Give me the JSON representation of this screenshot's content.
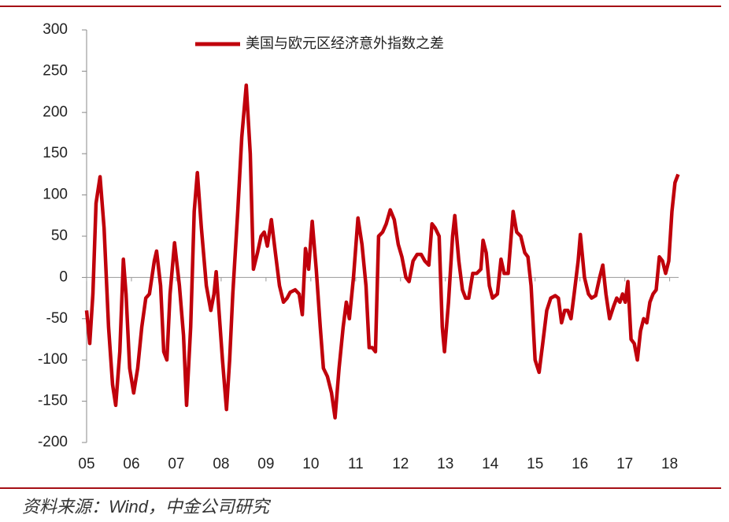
{
  "chart_data": {
    "type": "line",
    "source": "资料来源：Wind，中金公司研究",
    "xlim": [
      2005,
      2018.2
    ],
    "xticks": [
      {
        "value": 2005,
        "label": "05"
      },
      {
        "value": 2006,
        "label": "06"
      },
      {
        "value": 2007,
        "label": "07"
      },
      {
        "value": 2008,
        "label": "08"
      },
      {
        "value": 2009,
        "label": "09"
      },
      {
        "value": 2010,
        "label": "10"
      },
      {
        "value": 2011,
        "label": "11"
      },
      {
        "value": 2012,
        "label": "12"
      },
      {
        "value": 2013,
        "label": "13"
      },
      {
        "value": 2014,
        "label": "14"
      },
      {
        "value": 2015,
        "label": "15"
      },
      {
        "value": 2016,
        "label": "16"
      },
      {
        "value": 2017,
        "label": "17"
      },
      {
        "value": 2018,
        "label": "18"
      }
    ],
    "ylim": [
      -200,
      300
    ],
    "yticks": [
      -200,
      -150,
      -100,
      -50,
      0,
      50,
      100,
      150,
      200,
      250,
      300
    ],
    "legend": "top",
    "x": [
      2005.0,
      2005.07,
      2005.14,
      2005.21,
      2005.3,
      2005.39,
      2005.49,
      2005.58,
      2005.65,
      2005.74,
      2005.82,
      2005.88,
      2005.96,
      2006.05,
      2006.14,
      2006.23,
      2006.32,
      2006.4,
      2006.51,
      2006.56,
      2006.65,
      2006.72,
      2006.79,
      2006.86,
      2006.96,
      2007.07,
      2007.16,
      2007.23,
      2007.32,
      2007.4,
      2007.47,
      2007.56,
      2007.67,
      2007.77,
      2007.84,
      2007.89,
      2007.95,
      2008.03,
      2008.12,
      2008.19,
      2008.26,
      2008.37,
      2008.46,
      2008.56,
      2008.65,
      2008.72,
      2008.81,
      2008.89,
      2008.96,
      2009.03,
      2009.12,
      2009.21,
      2009.3,
      2009.39,
      2009.47,
      2009.54,
      2009.65,
      2009.74,
      2009.81,
      2009.88,
      2009.95,
      2010.03,
      2010.12,
      2010.21,
      2010.28,
      2010.37,
      2010.46,
      2010.54,
      2010.63,
      2010.72,
      2010.79,
      2010.86,
      2010.95,
      2011.05,
      2011.14,
      2011.23,
      2011.3,
      2011.37,
      2011.44,
      2011.51,
      2011.6,
      2011.68,
      2011.77,
      2011.86,
      2011.95,
      2012.03,
      2012.12,
      2012.19,
      2012.28,
      2012.37,
      2012.46,
      2012.54,
      2012.63,
      2012.7,
      2012.77,
      2012.86,
      2012.93,
      2012.98,
      2013.07,
      2013.16,
      2013.21,
      2013.3,
      2013.38,
      2013.45,
      2013.52,
      2013.61,
      2013.7,
      2013.79,
      2013.84,
      2013.91,
      2013.98,
      2014.05,
      2014.16,
      2014.24,
      2014.31,
      2014.4,
      2014.51,
      2014.59,
      2014.68,
      2014.77,
      2014.84,
      2014.91,
      2015.0,
      2015.09,
      2015.17,
      2015.26,
      2015.35,
      2015.45,
      2015.52,
      2015.59,
      2015.66,
      2015.73,
      2015.8,
      2015.87,
      2015.96,
      2016.01,
      2016.1,
      2016.19,
      2016.26,
      2016.35,
      2016.44,
      2016.51,
      2016.58,
      2016.66,
      2016.75,
      2016.82,
      2016.89,
      2016.95,
      2017.01,
      2017.07,
      2017.14,
      2017.21,
      2017.28,
      2017.35,
      2017.42,
      2017.49,
      2017.56,
      2017.63,
      2017.7,
      2017.77,
      2017.84,
      2017.91,
      2017.98,
      2018.05,
      2018.12,
      2018.19
    ],
    "series": [
      {
        "name": "美国与欧元区经济意外指数之差",
        "color": "#c0000b",
        "values": [
          -40,
          -80,
          -20,
          90,
          122,
          60,
          -60,
          -130,
          -155,
          -90,
          22,
          -20,
          -110,
          -140,
          -110,
          -60,
          -25,
          -20,
          20,
          32,
          -10,
          -90,
          -100,
          -20,
          42,
          -10,
          -70,
          -155,
          -60,
          80,
          127,
          60,
          -10,
          -40,
          -20,
          7,
          -40,
          -100,
          -160,
          -100,
          -20,
          80,
          170,
          233,
          150,
          10,
          30,
          50,
          55,
          38,
          70,
          30,
          -10,
          -30,
          -25,
          -18,
          -15,
          -20,
          -45,
          35,
          10,
          68,
          10,
          -60,
          -110,
          -120,
          -140,
          -170,
          -110,
          -60,
          -30,
          -50,
          0,
          72,
          40,
          -10,
          -85,
          -85,
          -90,
          50,
          55,
          65,
          82,
          70,
          40,
          25,
          0,
          -5,
          20,
          28,
          28,
          20,
          15,
          65,
          60,
          50,
          -60,
          -90,
          -30,
          50,
          75,
          20,
          -15,
          -25,
          -25,
          5,
          5,
          10,
          45,
          30,
          -10,
          -25,
          -20,
          22,
          5,
          5,
          80,
          55,
          50,
          30,
          25,
          -10,
          -100,
          -115,
          -80,
          -40,
          -25,
          -22,
          -25,
          -55,
          -40,
          -40,
          -50,
          -20,
          20,
          52,
          0,
          -20,
          -25,
          -22,
          0,
          15,
          -20,
          -50,
          -35,
          -25,
          -30,
          -20,
          -30,
          -5,
          -75,
          -80,
          -100,
          -65,
          -50,
          -55,
          -30,
          -20,
          -15,
          25,
          20,
          5,
          20,
          80,
          115,
          125
        ]
      }
    ]
  }
}
